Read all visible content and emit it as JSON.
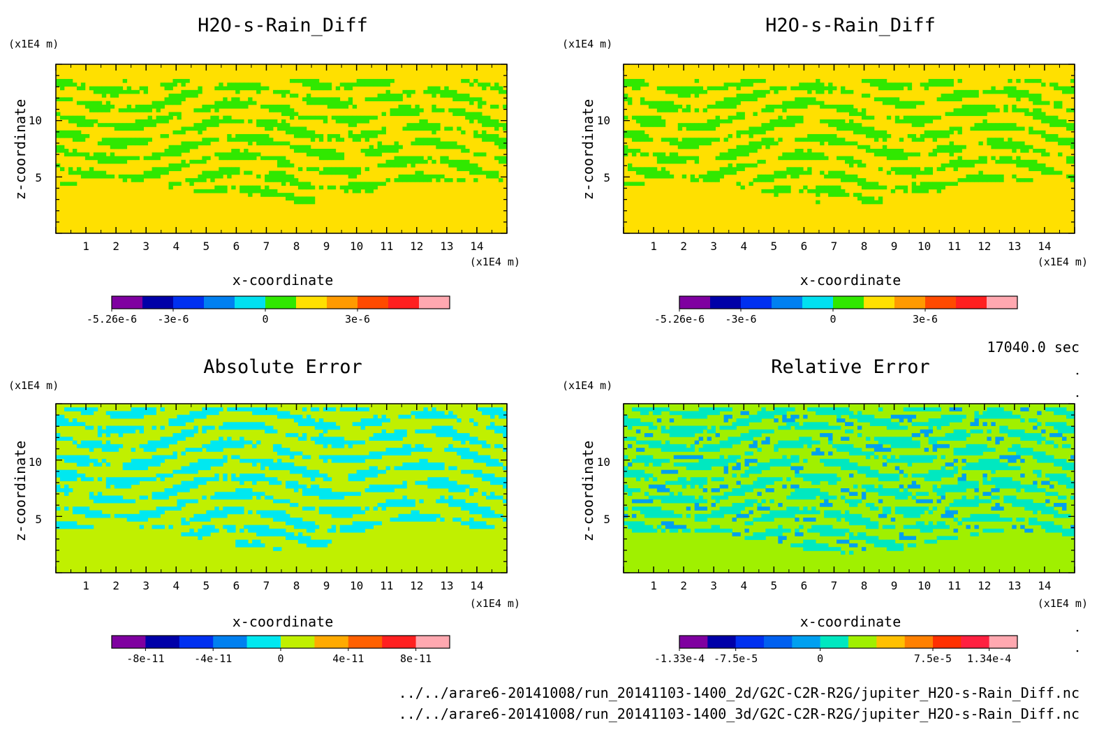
{
  "page": {
    "time_label": "17040.0 sec",
    "files": [
      "../../arare6-20141008/run_20141103-1400_2d/G2C-C2R-R2G/jupiter_H2O-s-Rain_Diff.nc",
      "../../arare6-20141008/run_20141103-1400_3d/G2C-C2R-R2G/jupiter_H2O-s-Rain_Diff.nc"
    ]
  },
  "chart_data": [
    {
      "type": "heatmap",
      "title": "H2O-s-Rain_Diff",
      "xlabel": "x-coordinate",
      "ylabel": "z-coordinate",
      "x_unit": "(x1E4 m)",
      "y_unit": "(x1E4 m)",
      "xlim": [
        0,
        15
      ],
      "ylim": [
        0,
        15
      ],
      "x_ticks": [
        "1",
        "2",
        "3",
        "4",
        "5",
        "6",
        "7",
        "8",
        "9",
        "10",
        "11",
        "12",
        "13",
        "14"
      ],
      "y_ticks": [
        "5",
        "10"
      ],
      "colorbar": {
        "colors": [
          "#7f00a0",
          "#0000a8",
          "#0030f0",
          "#0080f0",
          "#00e0f0",
          "#30e800",
          "#ffe000",
          "#ff9a00",
          "#ff4a00",
          "#ff2020",
          "#ffa8b0"
        ],
        "labels": [
          "-5.26e-6",
          "-3e-6",
          "0",
          "3e-6"
        ],
        "label_slots": [
          0,
          2,
          5,
          8
        ]
      },
      "pattern": {
        "base": "#ffe000",
        "stripe": "#30e800",
        "noise": "#ffe000",
        "stripe_top": 0.92,
        "boundary": 0.28
      }
    },
    {
      "type": "heatmap",
      "title": "H2O-s-Rain_Diff",
      "xlabel": "x-coordinate",
      "ylabel": "z-coordinate",
      "x_unit": "(x1E4 m)",
      "y_unit": "(x1E4 m)",
      "xlim": [
        0,
        15
      ],
      "ylim": [
        0,
        15
      ],
      "x_ticks": [
        "1",
        "2",
        "3",
        "4",
        "5",
        "6",
        "7",
        "8",
        "9",
        "10",
        "11",
        "12",
        "13",
        "14"
      ],
      "y_ticks": [
        "5",
        "10"
      ],
      "colorbar": {
        "colors": [
          "#7f00a0",
          "#0000a8",
          "#0030f0",
          "#0080f0",
          "#00e0f0",
          "#30e800",
          "#ffe000",
          "#ff9a00",
          "#ff4a00",
          "#ff2020",
          "#ffa8b0"
        ],
        "labels": [
          "-5.26e-6",
          "-3e-6",
          "0",
          "3e-6"
        ],
        "label_slots": [
          0,
          2,
          5,
          8
        ]
      },
      "pattern": {
        "base": "#ffe000",
        "stripe": "#30e800",
        "noise": "#ffe000",
        "stripe_top": 0.92,
        "boundary": 0.28
      }
    },
    {
      "type": "heatmap",
      "title": "Absolute Error",
      "xlabel": "x-coordinate",
      "ylabel": "z-coordinate",
      "x_unit": "(x1E4 m)",
      "y_unit": "(x1E4 m)",
      "xlim": [
        0,
        15
      ],
      "ylim": [
        0,
        15
      ],
      "x_ticks": [
        "1",
        "2",
        "3",
        "4",
        "5",
        "6",
        "7",
        "8",
        "9",
        "10",
        "11",
        "12",
        "13",
        "14"
      ],
      "y_ticks": [
        "5",
        "10"
      ],
      "colorbar": {
        "colors": [
          "#7f00a0",
          "#0000a8",
          "#0030f0",
          "#0080f0",
          "#00e8f0",
          "#c0f000",
          "#ffaa00",
          "#ff6000",
          "#ff2020",
          "#ffa8b0"
        ],
        "labels": [
          "-8e-11",
          "-4e-11",
          "0",
          "4e-11",
          "8e-11"
        ],
        "label_slots": [
          1,
          3,
          5,
          7,
          9
        ]
      },
      "pattern": {
        "base": "#c0f000",
        "stripe": "#00e8f0",
        "noise": "#c0f000",
        "stripe_top": 0.97,
        "boundary": 0.25
      }
    },
    {
      "type": "heatmap",
      "title": "Relative Error",
      "xlabel": "x-coordinate",
      "ylabel": "z-coordinate",
      "x_unit": "(x1E4 m)",
      "y_unit": "(x1E4 m)",
      "xlim": [
        0,
        15
      ],
      "ylim": [
        0,
        15
      ],
      "x_ticks": [
        "1",
        "2",
        "3",
        "4",
        "5",
        "6",
        "7",
        "8",
        "9",
        "10",
        "11",
        "12",
        "13",
        "14"
      ],
      "y_ticks": [
        "5",
        "10"
      ],
      "colorbar": {
        "colors": [
          "#7f00a0",
          "#0000a8",
          "#0030f0",
          "#0060f0",
          "#00a0f0",
          "#00e8c0",
          "#a0f000",
          "#ffc000",
          "#ff8000",
          "#ff3000",
          "#ff2040",
          "#ffa8b0"
        ],
        "labels": [
          "-1.33e-4",
          "-7.5e-5",
          "0",
          "7.5e-5",
          "1.34e-4"
        ],
        "label_slots": [
          0,
          2,
          5,
          9,
          11
        ]
      },
      "pattern": {
        "base": "#a0f000",
        "stripe": "#00e8c0",
        "noise": "#00a0f0",
        "stripe_top": 0.97,
        "boundary": 0.22
      }
    }
  ]
}
